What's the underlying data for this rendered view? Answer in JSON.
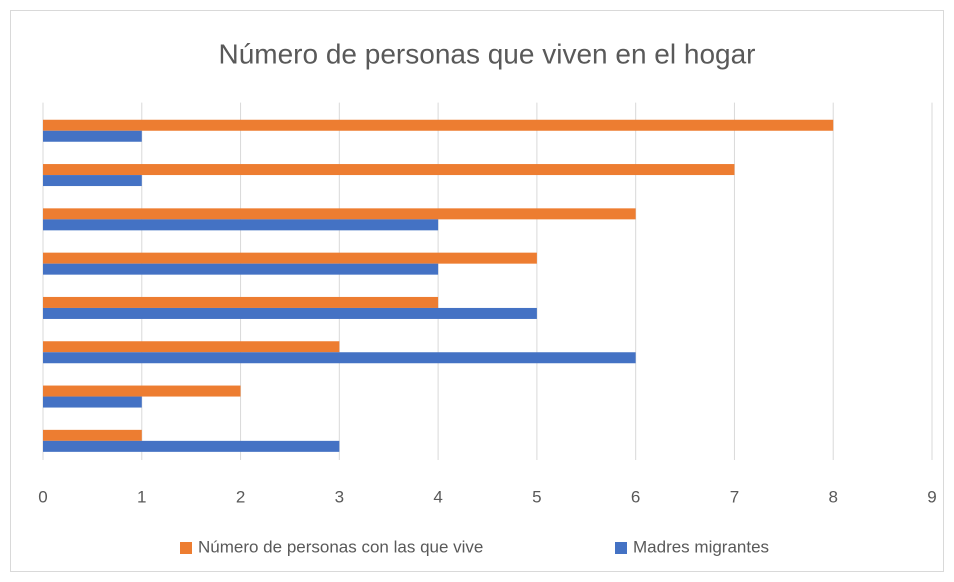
{
  "chart_data": {
    "type": "hbar",
    "title": "Número de personas que viven en el hogar",
    "categories": [
      null,
      null,
      null,
      null,
      null,
      null,
      null,
      null
    ],
    "series": [
      {
        "name": "Número de personas con las que vive",
        "color": "#ed7d31",
        "values": [
          1,
          2,
          3,
          4,
          5,
          6,
          7,
          8
        ]
      },
      {
        "name": "Madres migrantes",
        "color": "#4472c4",
        "values": [
          3,
          1,
          6,
          5,
          4,
          4,
          1,
          1
        ]
      }
    ],
    "xlim": [
      0,
      9
    ],
    "xticks": [
      0,
      1,
      2,
      3,
      4,
      5,
      6,
      7,
      8,
      9
    ],
    "grid": true,
    "legend": "bottom"
  }
}
